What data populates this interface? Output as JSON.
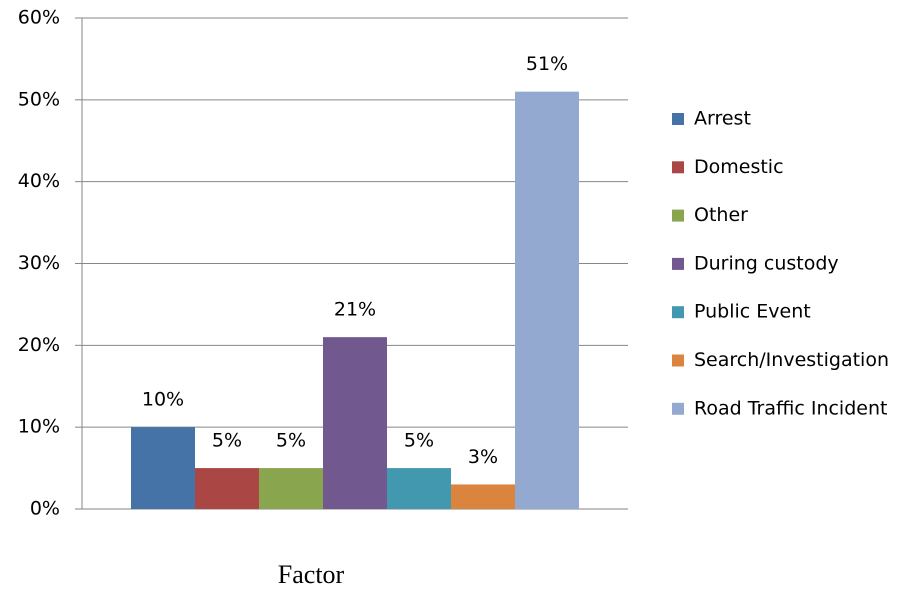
{
  "chart_data": {
    "type": "bar",
    "x_label": "Factor",
    "categories": [
      "Factor"
    ],
    "series": [
      {
        "name": "Arrest",
        "color": "#4572a7",
        "values": [
          10
        ],
        "value_labels": [
          "10%"
        ]
      },
      {
        "name": "Domestic",
        "color": "#aa4643",
        "values": [
          5
        ],
        "value_labels": [
          "5%"
        ]
      },
      {
        "name": "Other",
        "color": "#89a54e",
        "values": [
          5
        ],
        "value_labels": [
          "5%"
        ]
      },
      {
        "name": "During custody",
        "color": "#71588f",
        "values": [
          21
        ],
        "value_labels": [
          "21%"
        ]
      },
      {
        "name": "Public Event",
        "color": "#4198af",
        "values": [
          5
        ],
        "value_labels": [
          "5%"
        ]
      },
      {
        "name": "Search/Investigation",
        "color": "#db843d",
        "values": [
          3
        ],
        "value_labels": [
          "3%"
        ]
      },
      {
        "name": "Road Traffic Incident",
        "color": "#93a9cf",
        "values": [
          51
        ],
        "value_labels": [
          "51%"
        ]
      }
    ],
    "ylim": [
      0,
      60
    ],
    "yticks": [
      {
        "value": 0,
        "label": "0%"
      },
      {
        "value": 10,
        "label": "10%"
      },
      {
        "value": 20,
        "label": "20%"
      },
      {
        "value": 30,
        "label": "30%"
      },
      {
        "value": 40,
        "label": "40%"
      },
      {
        "value": 50,
        "label": "50%"
      },
      {
        "value": 60,
        "label": "60%"
      }
    ],
    "grid": true,
    "legend": "right"
  }
}
